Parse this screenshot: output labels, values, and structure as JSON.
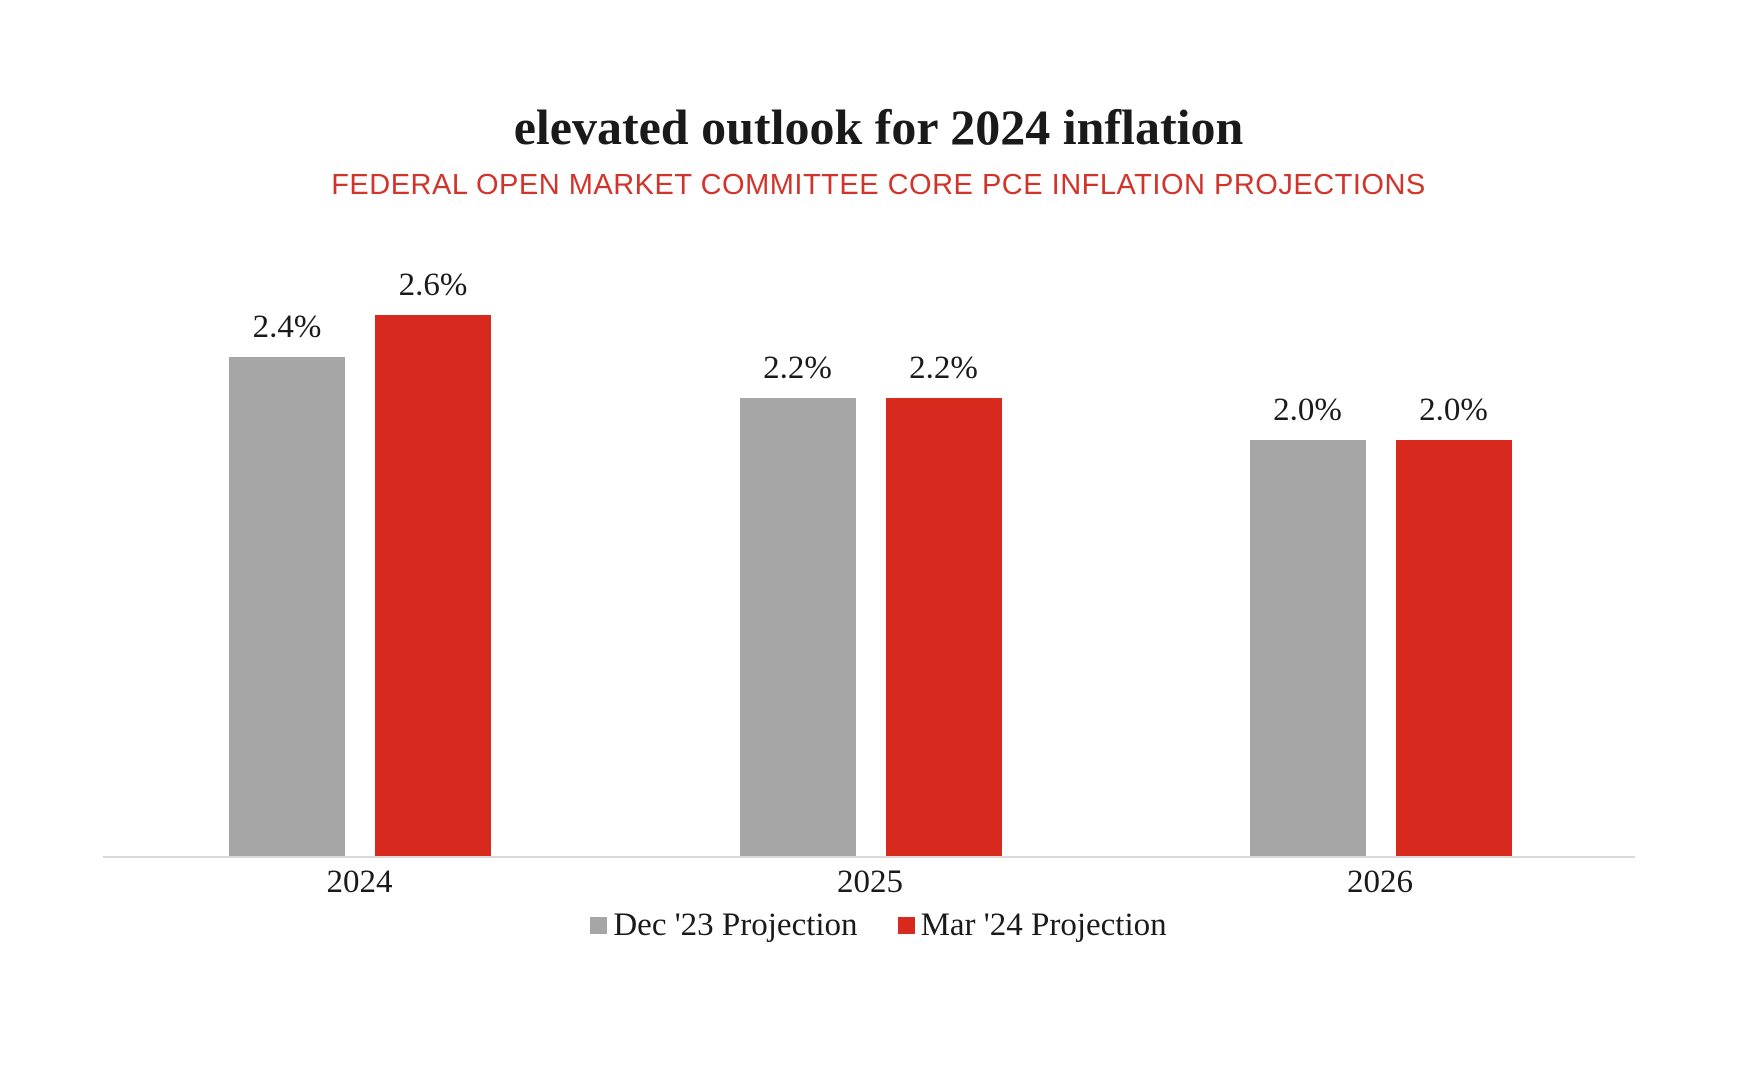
{
  "chart_data": {
    "type": "bar",
    "title": "elevated outlook for 2024 inflation",
    "subtitle": "FEDERAL OPEN MARKET COMMITTEE CORE PCE INFLATION PROJECTIONS",
    "categories": [
      "2024",
      "2025",
      "2026"
    ],
    "series": [
      {
        "name": "Dec '23 Projection",
        "color": "#a6a6a6",
        "values": [
          2.4,
          2.2,
          2.0
        ],
        "labels": [
          "2.4%",
          "2.2%",
          "2.0%"
        ]
      },
      {
        "name": "Mar '24 Projection",
        "color": "#d7291e",
        "values": [
          2.6,
          2.2,
          2.0
        ],
        "labels": [
          "2.6%",
          "2.2%",
          "2.0%"
        ]
      }
    ],
    "xlabel": "",
    "ylabel": "",
    "ylim": [
      0,
      3
    ],
    "grid": false,
    "y_axis_visible": false,
    "legend_position": "bottom",
    "value_label_format": "percent"
  },
  "colors": {
    "background": "#ffffff",
    "title_text": "#1a1a1a",
    "subtitle_text": "#d2342c",
    "axis_line": "#d9d9d9",
    "bar_gray": "#a6a6a6",
    "bar_red": "#d7291e"
  }
}
